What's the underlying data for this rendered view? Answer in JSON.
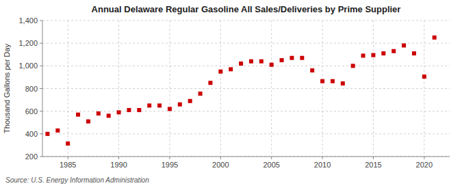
{
  "chart_data": {
    "type": "scatter",
    "title": "Annual Delaware Regular Gasoline All Sales/Deliveries by Prime Supplier",
    "ylabel": "Thousand Gallons per Day",
    "annotations": [
      "Source: U.S. Energy Information Administration"
    ],
    "x": [
      1983,
      1984,
      1985,
      1986,
      1987,
      1988,
      1989,
      1990,
      1991,
      1992,
      1993,
      1994,
      1995,
      1996,
      1997,
      1998,
      1999,
      2000,
      2001,
      2002,
      2003,
      2004,
      2005,
      2006,
      2007,
      2008,
      2009,
      2010,
      2011,
      2012,
      2013,
      2014,
      2015,
      2016,
      2017,
      2018,
      2019,
      2020,
      2021
    ],
    "values": [
      400,
      430,
      315,
      570,
      510,
      580,
      560,
      590,
      610,
      610,
      650,
      650,
      620,
      660,
      690,
      755,
      850,
      950,
      970,
      1020,
      1040,
      1040,
      1010,
      1050,
      1070,
      1070,
      960,
      865,
      865,
      845,
      1000,
      1090,
      1095,
      1110,
      1130,
      1180,
      1110,
      905,
      1250
    ],
    "color": "#cc0000",
    "marker": "square",
    "xlim": [
      1982.5,
      2022.5
    ],
    "xticks": [
      1985,
      1990,
      1995,
      2000,
      2005,
      2010,
      2015,
      2020
    ],
    "ylim": [
      200,
      1400
    ],
    "yticks": [
      200,
      400,
      600,
      800,
      {
        "value": 1000,
        "label": "1,000"
      },
      {
        "value": 1200,
        "label": "1,200"
      },
      {
        "value": 1400,
        "label": "1,400"
      }
    ],
    "grid": true
  }
}
